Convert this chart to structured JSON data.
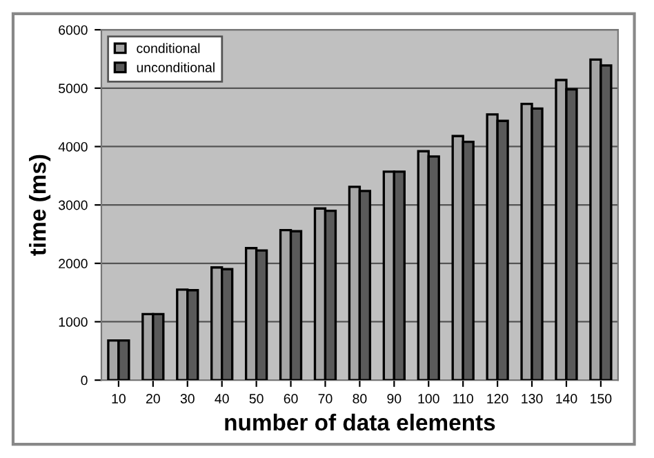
{
  "chart_data": {
    "type": "bar",
    "xlabel": "number of data elements",
    "ylabel": "time (ms)",
    "categories": [
      "10",
      "20",
      "30",
      "40",
      "50",
      "60",
      "70",
      "80",
      "90",
      "100",
      "110",
      "120",
      "130",
      "140",
      "150"
    ],
    "series": [
      {
        "name": "conditional",
        "color": "#a6a6a6",
        "values": [
          680,
          1130,
          1550,
          1930,
          2260,
          2570,
          2940,
          3310,
          3570,
          3920,
          4180,
          4550,
          4730,
          5140,
          5490
        ]
      },
      {
        "name": "unconditional",
        "color": "#5a5a5a",
        "values": [
          680,
          1130,
          1540,
          1900,
          2220,
          2550,
          2900,
          3240,
          3570,
          3830,
          4080,
          4440,
          4650,
          4980,
          5390
        ]
      }
    ],
    "ylim": [
      0,
      6000
    ],
    "yticks": [
      0,
      1000,
      2000,
      3000,
      4000,
      5000,
      6000
    ],
    "grid": "y",
    "legend": "top left"
  }
}
